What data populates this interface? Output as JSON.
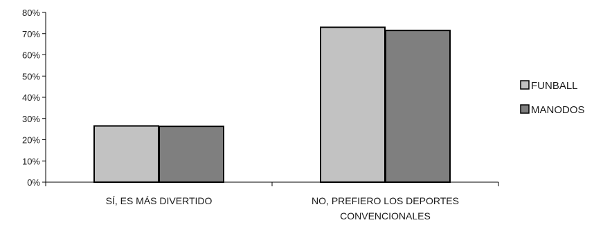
{
  "chart_data": {
    "type": "bar",
    "title": "",
    "xlabel": "",
    "ylabel": "",
    "ylim": [
      0,
      80
    ],
    "y_tick_step": 10,
    "y_tick_suffix": "%",
    "grid": false,
    "legend_position": "right",
    "categories": [
      [
        "SÍ, ES MÁS DIVERTIDO"
      ],
      [
        "NO, PREFIERO LOS DEPORTES",
        "CONVENCIONALES"
      ]
    ],
    "series": [
      {
        "name": "FUNBALL",
        "color": "#c2c2c2",
        "values": [
          26.5,
          73
        ]
      },
      {
        "name": "MANODOS",
        "color": "#7f7f7f",
        "values": [
          26.3,
          71.5
        ]
      }
    ],
    "y_ticks": [
      "0%",
      "10%",
      "20%",
      "30%",
      "40%",
      "50%",
      "60%",
      "70%",
      "80%"
    ]
  }
}
